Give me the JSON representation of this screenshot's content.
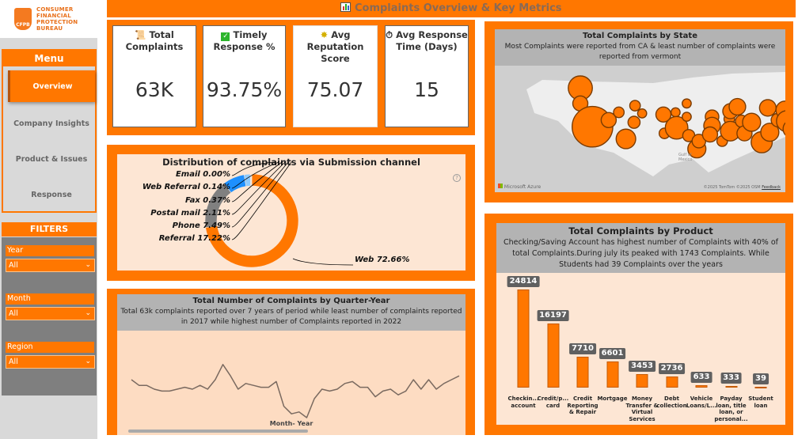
{
  "logo": {
    "text": [
      "CONSUMER",
      "FINANCIAL",
      "PROTECTION",
      "BUREAU"
    ],
    "seal": "CFPB"
  },
  "menu": {
    "title": "Menu",
    "items": [
      {
        "label": "Overview",
        "active": true
      },
      {
        "label": "Company Insights"
      },
      {
        "label": "Product & Issues"
      },
      {
        "label": "Response"
      }
    ]
  },
  "filters": {
    "title": "FILTERS",
    "items": [
      {
        "label": "Year",
        "value": "All"
      },
      {
        "label": "Month",
        "value": "All"
      },
      {
        "label": "Region",
        "value": "All"
      }
    ]
  },
  "header": {
    "icon": "bar-chart-icon",
    "title": "Complaints Overview & Key Metrics"
  },
  "kpis": [
    {
      "icon": "scroll-icon",
      "label": "Total Complaints",
      "value": "63K"
    },
    {
      "icon": "check-box-icon",
      "label": "Timely Response %",
      "value": "93.75%"
    },
    {
      "icon": "star-badge-icon",
      "label": "Avg Reputation Score",
      "value": "75.07"
    },
    {
      "icon": "stopwatch-icon",
      "label": "Avg Response Time (Days)",
      "value": "15"
    }
  ],
  "colors": {
    "accent": "#ff7700",
    "peach": "#fde6d4",
    "header_gray": "#b3b3b3"
  },
  "donut": {
    "title": "Distribution of complaints via Submission channel",
    "chart_data": {
      "type": "pie",
      "slices": [
        {
          "label": "Web 72.66%",
          "name": "Web",
          "value": 72.66,
          "color": "#ff7700"
        },
        {
          "label": "Referral 17.22%",
          "name": "Referral",
          "value": 17.22,
          "color": "#808080"
        },
        {
          "label": "Phone 7.49%",
          "name": "Phone",
          "value": 7.49,
          "color": "#1e90ff"
        },
        {
          "label": "Postal mail 2.11%",
          "name": "Postal mail",
          "value": 2.11,
          "color": "#8ecbff"
        },
        {
          "label": "Fax 0.37%",
          "name": "Fax",
          "value": 0.37,
          "color": "#c8e4ff"
        },
        {
          "label": "Web Referral 0.14%",
          "name": "Web Referral",
          "value": 0.14,
          "color": "#444444"
        },
        {
          "label": "Email 0.00%",
          "name": "Email",
          "value": 0.0,
          "color": "#222222"
        }
      ]
    }
  },
  "line": {
    "title": "Total Number of Complaints by Quarter-Year",
    "subtitle": "Total 63k complaints reported over 7 years of period while least number of complaints reported in 2017 while highest number of Complaints reported in 2022",
    "chart_data": {
      "type": "line",
      "xlabel": "Month- Year",
      "values": [
        60,
        57,
        57,
        55,
        54,
        54,
        55,
        56,
        55,
        57,
        55,
        60,
        68,
        62,
        55,
        58,
        57,
        56,
        56,
        59,
        46,
        42,
        43,
        40,
        50,
        55,
        54,
        55,
        58,
        59,
        56,
        56,
        51,
        54,
        55,
        52,
        54,
        60,
        55,
        60,
        55,
        58,
        60,
        62
      ]
    }
  },
  "map": {
    "title": "Total Complaints by State",
    "subtitle": "Most Complaints were reported from CA & least number of complaints were reported from vermont",
    "brand": "Microsoft Azure",
    "credits": "©2025 TomTom ©2025 OSM",
    "feedback": "Feedback",
    "gulf": "Gulf of Mexico"
  },
  "product": {
    "title": "Total Complaints by Product",
    "subtitle": "Checking/Saving Account has highest number of Complaints with 40% of total Complaints.During july its peaked with 1743 Complaints. While Students had 39 Complaints over the years",
    "chart_data": {
      "type": "bar",
      "categories": [
        "Checkin... account",
        "Credit/p... card",
        "Credit Reporting & Repair",
        "Mortgage",
        "Money Transfer & Virtual Services",
        "Debt collection",
        "Vehicle Loans/L...",
        "Payday loan, title loan, or personal...",
        "Student loan"
      ],
      "values": [
        24814,
        16197,
        7710,
        6601,
        3453,
        2736,
        633,
        333,
        39
      ],
      "ylim": [
        0,
        24814
      ]
    }
  }
}
